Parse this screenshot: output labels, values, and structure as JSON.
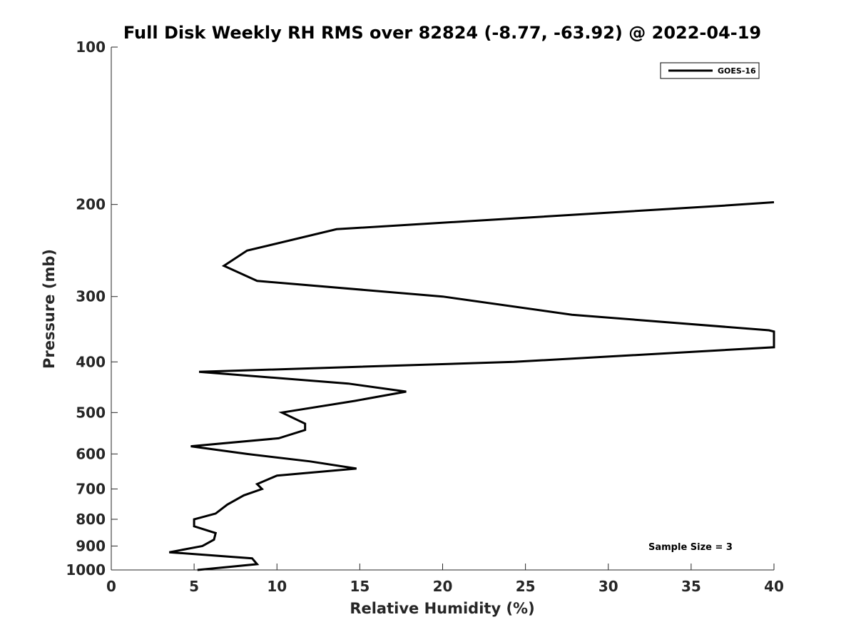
{
  "chart_data": {
    "type": "line",
    "title": "Full Disk Weekly RH RMS over 82824 (-8.77, -63.92) @ 2022-04-19",
    "xlabel": "Relative Humidity (%)",
    "ylabel": "Pressure (mb)",
    "xlim": [
      0,
      40
    ],
    "ylim": [
      100,
      1000
    ],
    "y_scale": "log",
    "y_reversed": true,
    "x_ticks": [
      0,
      5,
      10,
      15,
      20,
      25,
      30,
      35,
      40
    ],
    "y_ticks": [
      100,
      200,
      300,
      400,
      500,
      600,
      700,
      800,
      900,
      1000
    ],
    "grid": false,
    "legend_position": "top-right",
    "annotation": "Sample Size = 3",
    "series": [
      {
        "name": "GOES-16",
        "color": "#000000",
        "points": [
          [
            5.2,
            1000
          ],
          [
            8.8,
            975
          ],
          [
            8.5,
            950
          ],
          [
            3.5,
            925
          ],
          [
            5.5,
            900
          ],
          [
            6.2,
            875
          ],
          [
            6.3,
            850
          ],
          [
            5.0,
            825
          ],
          [
            5.0,
            800
          ],
          [
            6.3,
            780
          ],
          [
            7.0,
            750
          ],
          [
            8.0,
            720
          ],
          [
            9.1,
            700
          ],
          [
            8.8,
            685
          ],
          [
            10.0,
            660
          ],
          [
            14.8,
            640
          ],
          [
            12.0,
            620
          ],
          [
            8.2,
            600
          ],
          [
            4.8,
            580
          ],
          [
            10.1,
            560
          ],
          [
            11.7,
            540
          ],
          [
            11.7,
            525
          ],
          [
            10.3,
            500
          ],
          [
            14.7,
            475
          ],
          [
            17.8,
            456
          ],
          [
            14.3,
            440
          ],
          [
            5.3,
            418
          ],
          [
            24.3,
            400
          ],
          [
            40.0,
            375
          ],
          [
            40.0,
            350
          ],
          [
            39.7,
            348
          ],
          [
            27.8,
            325
          ],
          [
            20.0,
            300
          ],
          [
            8.8,
            280
          ],
          [
            6.8,
            262
          ],
          [
            8.2,
            245
          ],
          [
            13.6,
            223
          ],
          [
            37.0,
            201
          ],
          [
            40.0,
            198
          ]
        ]
      }
    ]
  }
}
